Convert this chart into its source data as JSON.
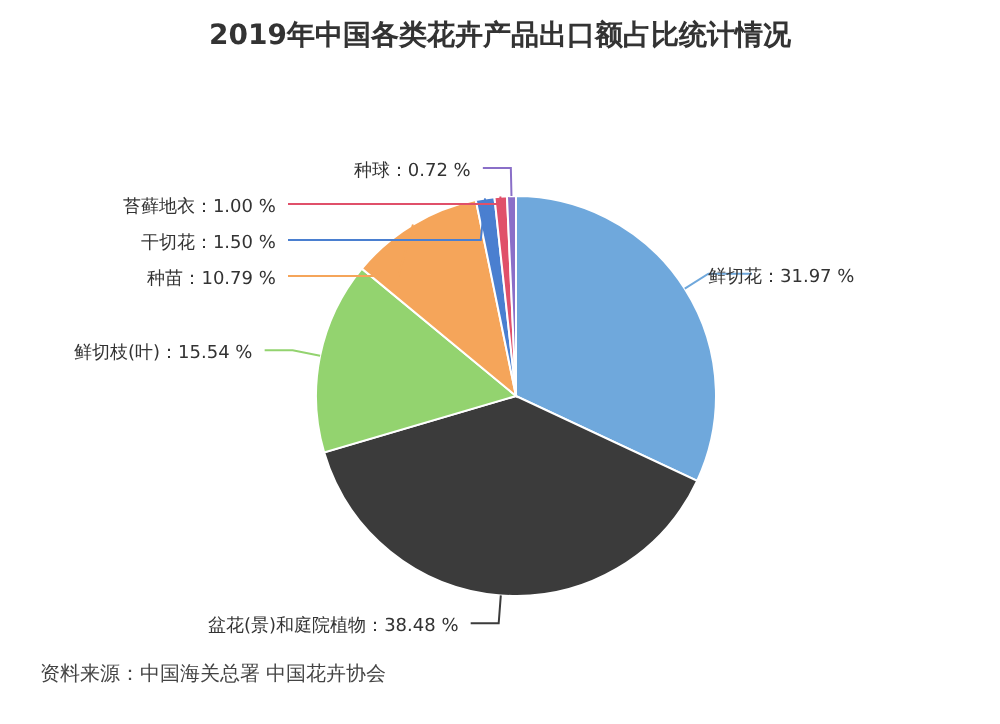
{
  "chart_data": {
    "type": "pie",
    "title": "2019年中国各类花卉产品出口额占比统计情况",
    "categories": [
      "鲜切花",
      "盆花(景)和庭院植物",
      "鲜切枝(叶)",
      "种苗",
      "干切花",
      "苔藓地衣",
      "种球"
    ],
    "values": [
      31.97,
      38.48,
      15.54,
      10.79,
      1.5,
      1.0,
      0.72
    ],
    "colors": [
      "#6fa8dc",
      "#3b3b3b",
      "#93d36f",
      "#f5a55a",
      "#4a7fd0",
      "#e0506a",
      "#8a6fc8"
    ],
    "value_labels": [
      "：31.97 %",
      "：38.48 %",
      "：15.54 %",
      "：10.79 %",
      "：1.50 %",
      "：1.00 %",
      "：0.72 %"
    ],
    "annotations": [
      "资料来源：中国海关总署 中国花卉协会"
    ]
  }
}
